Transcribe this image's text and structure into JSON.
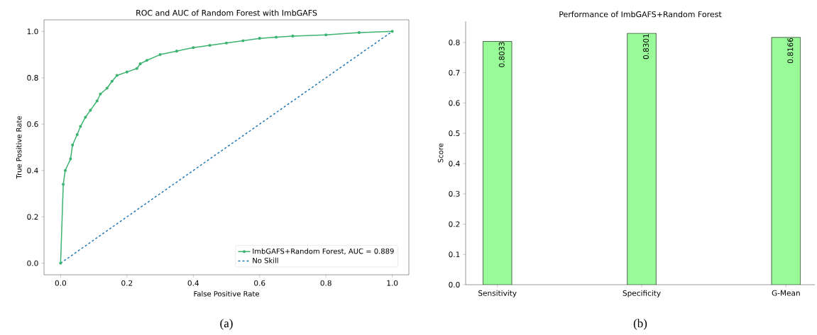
{
  "chart_data": [
    {
      "type": "line",
      "title": "ROC and AUC of Random Forest with ImbGAFS",
      "xlabel": "False Positive Rate",
      "ylabel": "True Positive Rate",
      "xlim": [
        -0.05,
        1.05
      ],
      "ylim": [
        -0.05,
        1.05
      ],
      "xticks": [
        {
          "value": 0,
          "label": "0.0"
        },
        {
          "value": 0.2,
          "label": "0.2"
        },
        {
          "value": 0.4,
          "label": "0.4"
        },
        {
          "value": 0.6,
          "label": "0.6"
        },
        {
          "value": 0.8,
          "label": "0.8"
        },
        {
          "value": 1,
          "label": "1.0"
        }
      ],
      "yticks": [
        {
          "value": 0,
          "label": "0.0"
        },
        {
          "value": 0.2,
          "label": "0.2"
        },
        {
          "value": 0.4,
          "label": "0.4"
        },
        {
          "value": 0.6,
          "label": "0.6"
        },
        {
          "value": 0.8,
          "label": "0.8"
        },
        {
          "value": 1,
          "label": "1.0"
        }
      ],
      "legend": "bottom right",
      "grid": false,
      "series": [
        {
          "name": "ImbGAFS+Random Forest, AUC = 0.889",
          "color": "#3cb371",
          "marker": "circle",
          "line_style": "solid",
          "x": [
            0,
            0.008,
            0.014,
            0.03,
            0.036,
            0.05,
            0.06,
            0.075,
            0.09,
            0.11,
            0.12,
            0.14,
            0.155,
            0.17,
            0.2,
            0.23,
            0.24,
            0.26,
            0.3,
            0.35,
            0.4,
            0.45,
            0.5,
            0.55,
            0.6,
            0.65,
            0.7,
            0.8,
            0.9,
            1.0
          ],
          "values": [
            0,
            0.34,
            0.4,
            0.45,
            0.51,
            0.555,
            0.59,
            0.63,
            0.66,
            0.7,
            0.73,
            0.755,
            0.785,
            0.81,
            0.825,
            0.84,
            0.86,
            0.875,
            0.9,
            0.915,
            0.93,
            0.94,
            0.95,
            0.96,
            0.97,
            0.975,
            0.98,
            0.985,
            0.995,
            1.0
          ]
        },
        {
          "name": "No Skill",
          "color": "#1f77b4",
          "marker": "none",
          "line_style": "dashed",
          "x": [
            0,
            1
          ],
          "values": [
            0,
            1
          ]
        }
      ],
      "annotations": [
        "(a)"
      ]
    },
    {
      "type": "bar",
      "title": "Performance of ImbGAFS+Random Forest",
      "ylabel": "Score",
      "categories": [
        "Sensitivity",
        "Specificity",
        "G-Mean"
      ],
      "values": [
        0.8033,
        0.8301,
        0.8166
      ],
      "color": "#98fb98",
      "ylim": [
        0,
        0.87
      ],
      "yticks": [
        {
          "value": 0,
          "label": "0.0"
        },
        {
          "value": 0.1,
          "label": "0.1"
        },
        {
          "value": 0.2,
          "label": "0.2"
        },
        {
          "value": 0.3,
          "label": "0.3"
        },
        {
          "value": 0.4,
          "label": "0.4"
        },
        {
          "value": 0.5,
          "label": "0.5"
        },
        {
          "value": 0.6,
          "label": "0.6"
        },
        {
          "value": 0.7,
          "label": "0.7"
        },
        {
          "value": 0.8,
          "label": "0.8"
        }
      ],
      "data_labels": true,
      "grid": false,
      "annotations": [
        "(b)"
      ]
    }
  ]
}
